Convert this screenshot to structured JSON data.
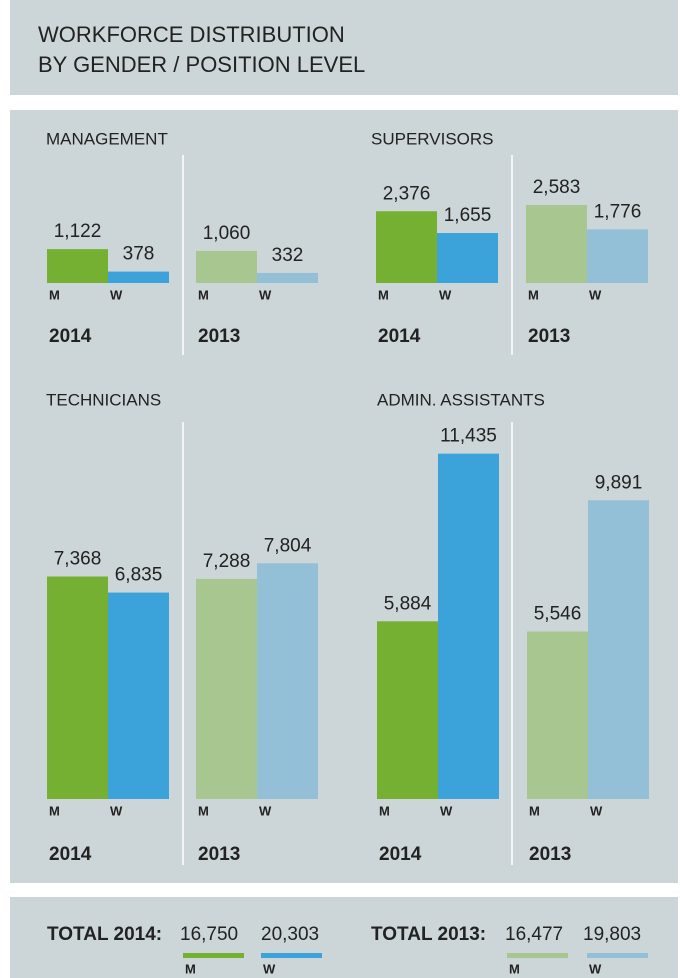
{
  "header": {
    "title_lines": [
      "WORKFORCE DISTRIBUTION",
      "BY GENDER / POSITION LEVEL"
    ]
  },
  "chart_data": [
    {
      "type": "bar",
      "title": "MANAGEMENT",
      "categories": [
        "M",
        "W"
      ],
      "series": [
        {
          "name": "2014",
          "colors": [
            "#76b033",
            "#3ca3da"
          ],
          "values": [
            1122,
            378
          ],
          "value_labels": [
            "1,122",
            "378"
          ]
        },
        {
          "name": "2013",
          "colors": [
            "#a7c690",
            "#93c0d6"
          ],
          "values": [
            1060,
            332
          ],
          "value_labels": [
            "1,060",
            "332"
          ]
        }
      ]
    },
    {
      "type": "bar",
      "title": "SUPERVISORS",
      "categories": [
        "M",
        "W"
      ],
      "series": [
        {
          "name": "2014",
          "colors": [
            "#76b033",
            "#3ca3da"
          ],
          "values": [
            2376,
            1655
          ],
          "value_labels": [
            "2,376",
            "1,655"
          ]
        },
        {
          "name": "2013",
          "colors": [
            "#a7c690",
            "#93c0d6"
          ],
          "values": [
            2583,
            1776
          ],
          "value_labels": [
            "2,583",
            "1,776"
          ]
        }
      ]
    },
    {
      "type": "bar",
      "title": "TECHNICIANS",
      "categories": [
        "M",
        "W"
      ],
      "series": [
        {
          "name": "2014",
          "colors": [
            "#76b033",
            "#3ca3da"
          ],
          "values": [
            7368,
            6835
          ],
          "value_labels": [
            "7,368",
            "6,835"
          ]
        },
        {
          "name": "2013",
          "colors": [
            "#a7c690",
            "#93c0d6"
          ],
          "values": [
            7288,
            7804
          ],
          "value_labels": [
            "7,288",
            "7,804"
          ]
        }
      ]
    },
    {
      "type": "bar",
      "title": "ADMIN. ASSISTANTS",
      "categories": [
        "M",
        "W"
      ],
      "series": [
        {
          "name": "2014",
          "colors": [
            "#76b033",
            "#3ca3da"
          ],
          "values": [
            5884,
            11435
          ],
          "value_labels": [
            "5,884",
            "11,435"
          ]
        },
        {
          "name": "2013",
          "colors": [
            "#a7c690",
            "#93c0d6"
          ],
          "values": [
            5546,
            9891
          ],
          "value_labels": [
            "5,546",
            "9,891"
          ]
        }
      ]
    }
  ],
  "totals": [
    {
      "label": "TOTAL 2014:",
      "categories": [
        "M",
        "W"
      ],
      "colors": [
        "#76b033",
        "#3ca3da"
      ],
      "values": [
        16750,
        20303
      ],
      "value_labels": [
        "16,750",
        "20,303"
      ]
    },
    {
      "label": "TOTAL 2013:",
      "categories": [
        "M",
        "W"
      ],
      "colors": [
        "#a7c690",
        "#93c0d6"
      ],
      "values": [
        16477,
        19803
      ],
      "value_labels": [
        "16,477",
        "19,803"
      ]
    }
  ]
}
